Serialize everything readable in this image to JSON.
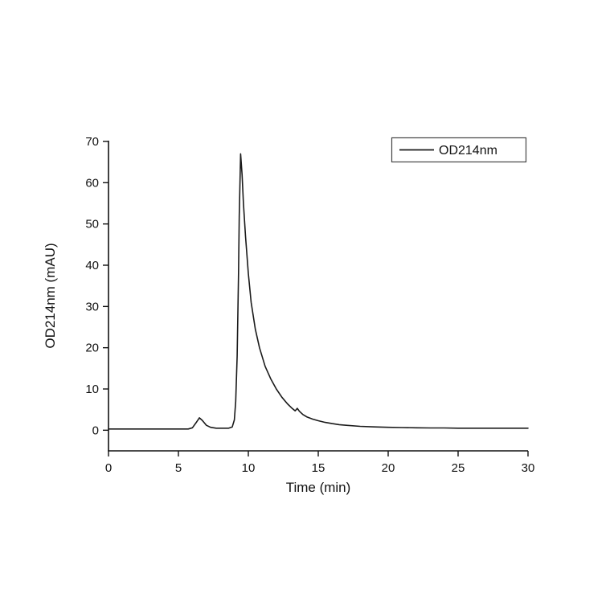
{
  "chart_data": {
    "type": "line",
    "title": "",
    "xlabel": "Time (min)",
    "ylabel": "OD214nm (mAU)",
    "xlim": [
      0,
      30
    ],
    "ylim": [
      -5,
      70
    ],
    "x_ticks": [
      0,
      5,
      10,
      15,
      20,
      25,
      30
    ],
    "y_ticks": [
      0,
      10,
      20,
      30,
      40,
      50,
      60,
      70
    ],
    "grid": false,
    "line_color": "#1a1a1a",
    "legend": {
      "position": "top-right",
      "entries": [
        {
          "label": "OD214nm",
          "color": "#1a1a1a"
        }
      ]
    },
    "series": [
      {
        "name": "OD214nm",
        "color": "#1a1a1a",
        "points": [
          [
            0.0,
            0.3
          ],
          [
            1.0,
            0.3
          ],
          [
            2.0,
            0.3
          ],
          [
            3.0,
            0.3
          ],
          [
            4.0,
            0.3
          ],
          [
            5.0,
            0.3
          ],
          [
            5.7,
            0.3
          ],
          [
            6.0,
            0.6
          ],
          [
            6.3,
            2.0
          ],
          [
            6.5,
            3.0
          ],
          [
            6.7,
            2.4
          ],
          [
            7.0,
            1.2
          ],
          [
            7.3,
            0.7
          ],
          [
            7.7,
            0.5
          ],
          [
            8.2,
            0.5
          ],
          [
            8.6,
            0.5
          ],
          [
            8.85,
            0.8
          ],
          [
            9.0,
            2.5
          ],
          [
            9.1,
            7.0
          ],
          [
            9.2,
            18.0
          ],
          [
            9.3,
            38.0
          ],
          [
            9.35,
            52.0
          ],
          [
            9.45,
            67.0
          ],
          [
            9.55,
            62.0
          ],
          [
            9.65,
            55.0
          ],
          [
            9.8,
            47.0
          ],
          [
            10.0,
            38.0
          ],
          [
            10.2,
            31.0
          ],
          [
            10.5,
            24.5
          ],
          [
            10.8,
            20.0
          ],
          [
            11.2,
            15.5
          ],
          [
            11.6,
            12.5
          ],
          [
            12.0,
            10.0
          ],
          [
            12.4,
            8.0
          ],
          [
            12.8,
            6.4
          ],
          [
            13.1,
            5.4
          ],
          [
            13.35,
            4.7
          ],
          [
            13.5,
            5.3
          ],
          [
            13.65,
            4.6
          ],
          [
            13.9,
            3.8
          ],
          [
            14.2,
            3.2
          ],
          [
            14.6,
            2.7
          ],
          [
            15.0,
            2.3
          ],
          [
            15.5,
            1.9
          ],
          [
            16.0,
            1.6
          ],
          [
            16.5,
            1.35
          ],
          [
            17.0,
            1.2
          ],
          [
            18.0,
            0.95
          ],
          [
            19.0,
            0.8
          ],
          [
            20.0,
            0.7
          ],
          [
            21.0,
            0.65
          ],
          [
            22.0,
            0.6
          ],
          [
            23.0,
            0.55
          ],
          [
            24.0,
            0.55
          ],
          [
            25.0,
            0.5
          ],
          [
            26.0,
            0.5
          ],
          [
            27.0,
            0.5
          ],
          [
            28.0,
            0.5
          ],
          [
            29.0,
            0.5
          ],
          [
            30.0,
            0.5
          ]
        ]
      }
    ]
  }
}
